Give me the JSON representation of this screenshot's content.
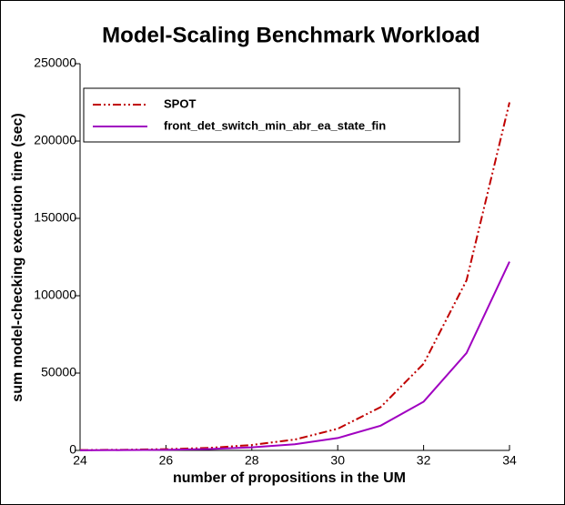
{
  "chart_data": {
    "type": "line",
    "title": "Model-Scaling Benchmark Workload",
    "x_label": "number of propositions in the UM",
    "y_label": "sum model-checking execution time (sec)",
    "x": [
      24,
      25,
      26,
      27,
      28,
      29,
      30,
      31,
      32,
      33,
      34
    ],
    "series": [
      {
        "name": "SPOT",
        "color": "#c00000",
        "linestyle": "dashdotdot",
        "values": [
          200,
          400,
          800,
          1600,
          3500,
          7000,
          14000,
          28000,
          56000,
          110000,
          225000
        ]
      },
      {
        "name": "front_det_switch_min_abr_ea_state_fin",
        "color": "#a000c0",
        "linestyle": "solid",
        "values": [
          100,
          200,
          400,
          900,
          2000,
          4000,
          8000,
          16000,
          31500,
          63000,
          122000
        ]
      }
    ],
    "xlim": [
      24,
      34
    ],
    "xticks": [
      24,
      26,
      28,
      30,
      32,
      34
    ],
    "ylim": [
      0,
      250000
    ],
    "yticks": [
      0,
      50000,
      100000,
      150000,
      200000,
      250000
    ],
    "legend": "upper left"
  }
}
